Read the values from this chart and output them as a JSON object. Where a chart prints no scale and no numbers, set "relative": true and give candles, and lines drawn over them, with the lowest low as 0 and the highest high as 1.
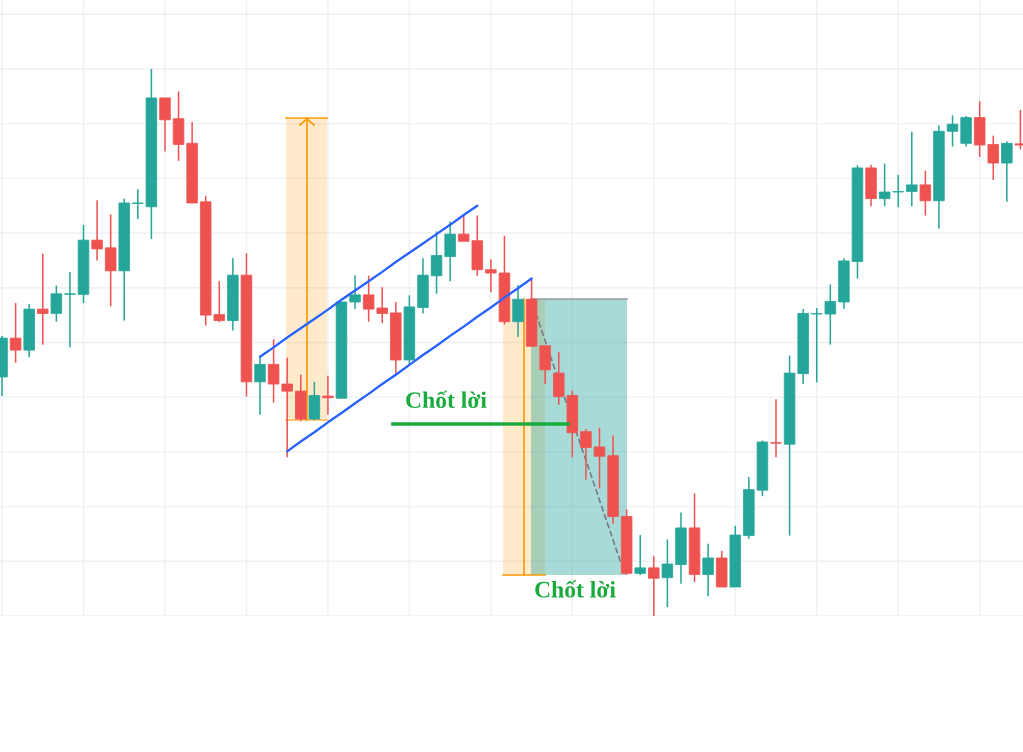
{
  "chart_data": {
    "type": "candlestick",
    "relative": true,
    "grid": true,
    "categories": [
      null,
      null,
      null,
      null,
      null,
      null,
      null,
      null,
      null,
      null,
      null,
      null,
      null,
      null,
      null,
      null,
      null,
      null,
      null,
      null,
      null,
      null,
      null,
      null,
      null,
      null,
      null,
      null,
      null,
      null,
      null,
      null,
      null,
      null,
      null,
      null,
      null,
      null,
      null,
      null,
      null,
      null,
      null,
      null,
      null,
      null,
      null,
      null,
      null,
      null,
      null,
      null,
      null,
      null,
      null,
      null,
      null,
      null,
      null,
      null,
      null,
      null,
      null,
      null,
      null,
      null,
      null,
      null,
      null,
      null,
      null,
      null,
      null,
      null,
      null,
      null
    ],
    "ohlc": [
      [
        0.437,
        0.512,
        0.402,
        0.508
      ],
      [
        0.508,
        0.572,
        0.463,
        0.486
      ],
      [
        0.486,
        0.57,
        0.473,
        0.561
      ],
      [
        0.561,
        0.662,
        0.496,
        0.553
      ],
      [
        0.553,
        0.604,
        0.538,
        0.589
      ],
      [
        0.588,
        0.629,
        0.491,
        0.589
      ],
      [
        0.588,
        0.715,
        0.572,
        0.687
      ],
      [
        0.687,
        0.76,
        0.65,
        0.671
      ],
      [
        0.673,
        0.734,
        0.566,
        0.631
      ],
      [
        0.631,
        0.763,
        0.54,
        0.755
      ],
      [
        0.754,
        0.78,
        0.725,
        0.755
      ],
      [
        0.748,
        1,
        0.689,
        0.947
      ],
      [
        0.947,
        0.947,
        0.849,
        0.907
      ],
      [
        0.909,
        0.959,
        0.832,
        0.862
      ],
      [
        0.864,
        0.903,
        0.754,
        0.755
      ],
      [
        0.757,
        0.768,
        0.531,
        0.55
      ],
      [
        0.551,
        0.612,
        0.537,
        0.54
      ],
      [
        0.54,
        0.654,
        0.522,
        0.623
      ],
      [
        0.623,
        0.663,
        0.401,
        0.428
      ],
      [
        0.428,
        0.473,
        0.368,
        0.46
      ],
      [
        0.46,
        0.506,
        0.39,
        0.424
      ],
      [
        0.424,
        0.472,
        0.29,
        0.411
      ],
      [
        0.411,
        0.441,
        0.356,
        0.36
      ],
      [
        0.36,
        0.428,
        0.358,
        0.403
      ],
      [
        0.402,
        0.439,
        0.368,
        0.399
      ],
      [
        0.398,
        0.574,
        0.398,
        0.574
      ],
      [
        0.574,
        0.623,
        0.561,
        0.587
      ],
      [
        0.587,
        0.622,
        0.538,
        0.561
      ],
      [
        0.563,
        0.601,
        0.535,
        0.553
      ],
      [
        0.554,
        0.574,
        0.442,
        0.468
      ],
      [
        0.468,
        0.586,
        0.46,
        0.565
      ],
      [
        0.564,
        0.654,
        0.553,
        0.623
      ],
      [
        0.622,
        0.703,
        0.589,
        0.659
      ],
      [
        0.657,
        0.721,
        0.612,
        0.698
      ],
      [
        0.698,
        0.732,
        0.685,
        0.685
      ],
      [
        0.686,
        0.732,
        0.622,
        0.633
      ],
      [
        0.633,
        0.652,
        0.592,
        0.627
      ],
      [
        0.627,
        0.695,
        0.533,
        0.538
      ],
      [
        0.538,
        0.605,
        0.51,
        0.579
      ],
      [
        0.579,
        0.617,
        0.493,
        0.493
      ],
      [
        0.494,
        0.494,
        0.424,
        0.45
      ],
      [
        0.444,
        0.483,
        0.386,
        0.401
      ],
      [
        0.403,
        0.412,
        0.29,
        0.335
      ],
      [
        0.337,
        0.342,
        0.249,
        0.308
      ],
      [
        0.309,
        0.344,
        0.233,
        0.292
      ],
      [
        0.293,
        0.33,
        0.168,
        0.182
      ],
      [
        0.182,
        0.195,
        0.075,
        0.078
      ],
      [
        0.078,
        0.148,
        0.075,
        0.088
      ],
      [
        0.088,
        0.109,
        0,
        0.069
      ],
      [
        0.07,
        0.14,
        0.016,
        0.095
      ],
      [
        0.094,
        0.189,
        0.059,
        0.161
      ],
      [
        0.161,
        0.224,
        0.062,
        0.076
      ],
      [
        0.076,
        0.132,
        0.036,
        0.106
      ],
      [
        0.106,
        0.119,
        0.053,
        0.053
      ],
      [
        0.053,
        0.165,
        0.053,
        0.148
      ],
      [
        0.147,
        0.254,
        0.141,
        0.231
      ],
      [
        0.23,
        0.321,
        0.219,
        0.318
      ],
      [
        0.317,
        0.396,
        0.29,
        0.316
      ],
      [
        0.314,
        0.476,
        0.147,
        0.444
      ],
      [
        0.443,
        0.561,
        0.424,
        0.553
      ],
      [
        0.552,
        0.563,
        0.427,
        0.553
      ],
      [
        0.552,
        0.606,
        0.496,
        0.575
      ],
      [
        0.574,
        0.654,
        0.561,
        0.649
      ],
      [
        0.648,
        0.824,
        0.617,
        0.819
      ],
      [
        0.819,
        0.825,
        0.749,
        0.763
      ],
      [
        0.763,
        0.827,
        0.749,
        0.775
      ],
      [
        0.775,
        0.806,
        0.747,
        0.776
      ],
      [
        0.776,
        0.885,
        0.749,
        0.788
      ],
      [
        0.788,
        0.814,
        0.732,
        0.759
      ],
      [
        0.759,
        0.897,
        0.708,
        0.886
      ],
      [
        0.886,
        0.915,
        0.858,
        0.899
      ],
      [
        0.864,
        0.914,
        0.858,
        0.911
      ],
      [
        0.911,
        0.941,
        0.839,
        0.861
      ],
      [
        0.862,
        0.878,
        0.797,
        0.828
      ],
      [
        0.828,
        0.868,
        0.757,
        0.864
      ],
      [
        0.863,
        0.925,
        0.853,
        0.861
      ]
    ],
    "colors": [
      "#26a69a",
      "#ef5350",
      "#26a69a",
      "#ef5350",
      "#26a69a",
      "#26a69a",
      "#26a69a",
      "#ef5350",
      "#ef5350",
      "#26a69a",
      "#26a69a",
      "#26a69a",
      "#ef5350",
      "#ef5350",
      "#ef5350",
      "#ef5350",
      "#ef5350",
      "#26a69a",
      "#ef5350",
      "#26a69a",
      "#ef5350",
      "#ef5350",
      "#ef5350",
      "#26a69a",
      "#ef5350",
      "#26a69a",
      "#26a69a",
      "#ef5350",
      "#ef5350",
      "#ef5350",
      "#26a69a",
      "#26a69a",
      "#26a69a",
      "#26a69a",
      "#ef5350",
      "#ef5350",
      "#ef5350",
      "#ef5350",
      "#26a69a",
      "#ef5350",
      "#ef5350",
      "#ef5350",
      "#ef5350",
      "#ef5350",
      "#ef5350",
      "#ef5350",
      "#ef5350",
      "#26a69a",
      "#ef5350",
      "#26a69a",
      "#26a69a",
      "#ef5350",
      "#26a69a",
      "#ef5350",
      "#26a69a",
      "#26a69a",
      "#26a69a",
      "#ef5350",
      "#26a69a",
      "#26a69a",
      "#26a69a",
      "#26a69a",
      "#26a69a",
      "#26a69a",
      "#ef5350",
      "#26a69a",
      "#26a69a",
      "#26a69a",
      "#ef5350",
      "#26a69a",
      "#26a69a",
      "#26a69a",
      "#ef5350",
      "#ef5350",
      "#26a69a",
      "#ef5350"
    ],
    "series": [
      {
        "type": "line",
        "color": "#2962ff",
        "values": [
          null,
          null,
          null,
          null,
          null,
          null,
          null,
          null,
          null,
          null,
          null,
          null,
          null,
          null,
          null,
          null,
          null,
          null,
          null,
          0.474,
          0.491,
          0.509,
          0.526,
          0.543,
          0.56,
          0.578,
          0.595,
          0.612,
          0.629,
          0.647,
          0.664,
          0.681,
          0.698,
          0.715,
          0.733,
          0.75,
          null,
          null,
          null,
          null,
          null,
          null,
          null,
          null,
          null,
          null,
          null,
          null,
          null,
          null,
          null,
          null,
          null,
          null,
          null,
          null,
          null,
          null,
          null,
          null,
          null,
          null,
          null,
          null,
          null,
          null,
          null,
          null,
          null,
          null,
          null,
          null,
          null,
          null,
          null,
          null
        ]
      },
      {
        "type": "line",
        "color": "#2962ff",
        "values": [
          null,
          null,
          null,
          null,
          null,
          null,
          null,
          null,
          null,
          null,
          null,
          null,
          null,
          null,
          null,
          null,
          null,
          null,
          null,
          null,
          null,
          0.301,
          0.319,
          0.336,
          0.354,
          0.371,
          0.389,
          0.406,
          0.424,
          0.441,
          0.459,
          0.477,
          0.494,
          0.512,
          0.529,
          0.547,
          0.564,
          0.582,
          0.599,
          0.617,
          null,
          null,
          null,
          null,
          null,
          null,
          null,
          null,
          null,
          null,
          null,
          null,
          null,
          null,
          null,
          null,
          null,
          null,
          null,
          null,
          null,
          null,
          null,
          null,
          null,
          null,
          null,
          null,
          null,
          null,
          null,
          null,
          null,
          null,
          null,
          null
        ]
      }
    ],
    "ref_lines": [
      {
        "axis": "y",
        "value": 0.351,
        "label": "Chốt lời",
        "color": "#1aab3c"
      }
    ],
    "annotations": [
      "Chốt lời"
    ]
  }
}
